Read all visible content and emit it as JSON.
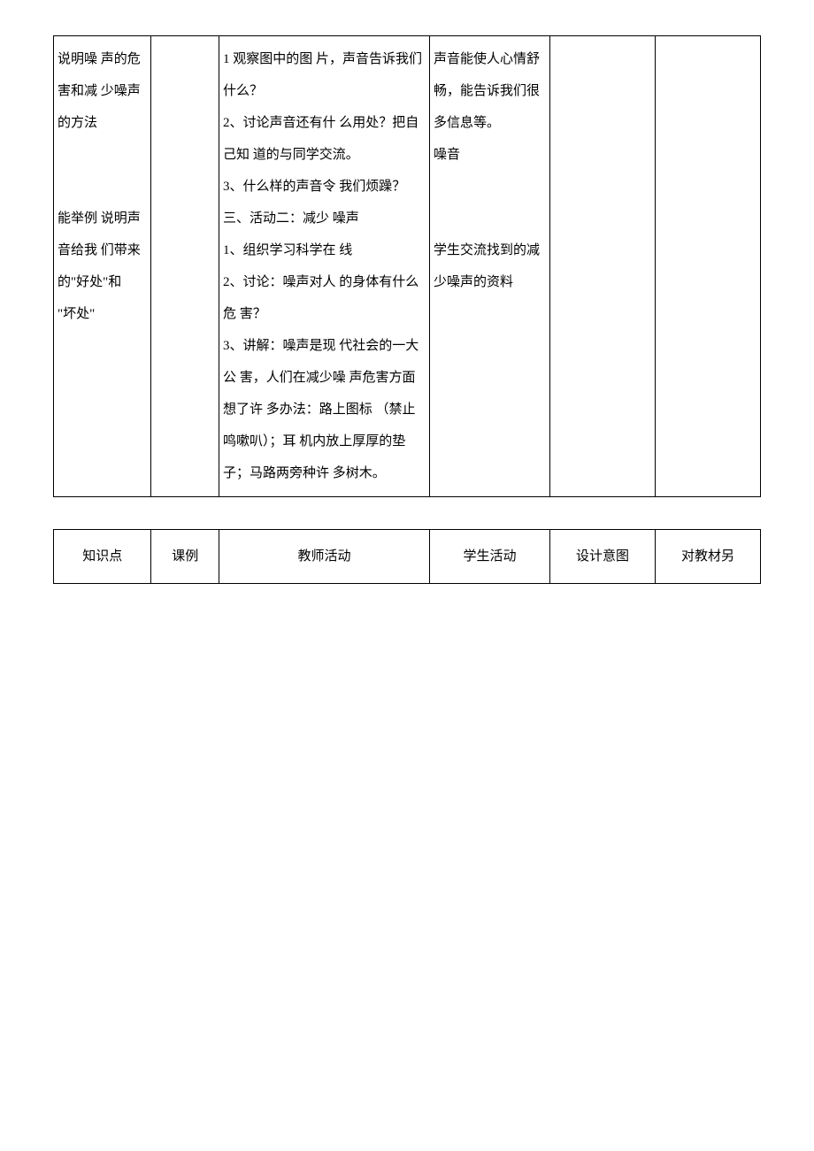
{
  "table1": {
    "col1_text": "说明噪 声的危 害和减 少噪声 的方法\n\n\n能举例 说明声 音给我 们带来 的\"好处\"和\n\"坏处\"",
    "col2_text": "",
    "col3_text": "1 观察图中的图 片，声音告诉我们 什么？\n2、讨论声音还有什 么用处？把自己知 道的与同学交流。\n3、什么样的声音令 我们烦躁？\n三、活动二：减少 噪声\n1、组织学习科学在 线\n2、讨论：噪声对人 的身体有什么危 害？\n3、讲解：噪声是现 代社会的一大公 害，人们在减少噪 声危害方面想了许 多办法：路上图标  （禁止鸣嗽叭）；耳 机内放上厚厚的垫 子；马路两旁种许 多树木。",
    "col4_text": "声音能使人心情舒畅，能告诉我们很多信息等。\n噪音\n\n\n学生交流找到的减少噪声的资料",
    "col5_text": "",
    "col6_text": ""
  },
  "table2": {
    "headers": {
      "h1": "知识点",
      "h2": "课例",
      "h3": "教师活动",
      "h4": "学生活动",
      "h5": "设计意图",
      "h6": "对教材另"
    }
  }
}
